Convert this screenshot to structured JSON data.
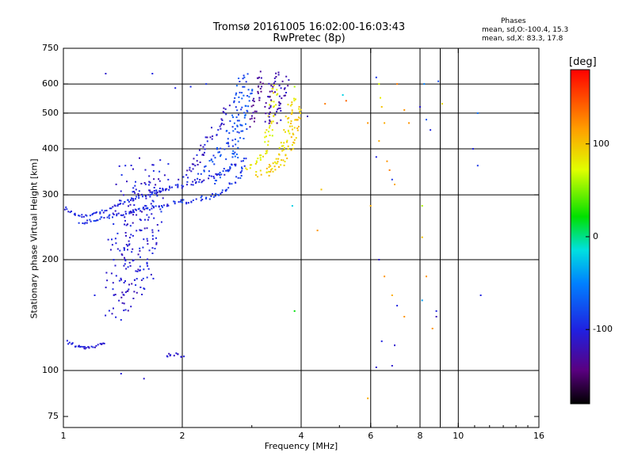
{
  "header": {
    "title_line1": "Tromsø 20161005 16:02:00-16:03:43",
    "title_line2": "RwPretec (8p)",
    "stats_title": "Phases",
    "stats_line1": "mean, sd,O:-100.4, 15.3",
    "stats_line2": "mean, sd,X:  83.3, 17.8"
  },
  "colorbar": {
    "title": "[deg]",
    "range": [
      -180,
      180
    ],
    "ticks": [
      {
        "value": 100,
        "label": "100"
      },
      {
        "value": 0,
        "label": "0"
      },
      {
        "value": -100,
        "label": "-100"
      }
    ]
  },
  "chart_data": {
    "type": "scatter",
    "xlabel": "Frequency [MHz]",
    "ylabel": "Stationary phase Virtual Height [km]",
    "xscale": "log",
    "yscale": "log",
    "xlim": [
      1,
      16
    ],
    "ylim": [
      70,
      750
    ],
    "xticks": [
      {
        "value": 1,
        "label": "1"
      },
      {
        "value": 2,
        "label": "2"
      },
      {
        "value": 4,
        "label": "4"
      },
      {
        "value": 6,
        "label": "6"
      },
      {
        "value": 8,
        "label": "8"
      },
      {
        "value": 10,
        "label": "10"
      },
      {
        "value": 16,
        "label": "16"
      }
    ],
    "yticks": [
      {
        "value": 75,
        "label": "75"
      },
      {
        "value": 100,
        "label": "100"
      },
      {
        "value": 200,
        "label": "200"
      },
      {
        "value": 300,
        "label": "300"
      },
      {
        "value": 400,
        "label": "400"
      },
      {
        "value": 500,
        "label": "500"
      },
      {
        "value": 600,
        "label": "600"
      },
      {
        "value": 750,
        "label": "750"
      }
    ],
    "grid": true,
    "xgrid": [
      2,
      4,
      6,
      8,
      9,
      10
    ],
    "ygrid": [
      100,
      200,
      300,
      400,
      500,
      600
    ],
    "traces": [
      {
        "name": "low-E",
        "phase": -105,
        "spread": 4,
        "points": [
          [
            1.02,
            120
          ],
          [
            1.05,
            118
          ],
          [
            1.08,
            116
          ],
          [
            1.1,
            116
          ],
          [
            1.13,
            115
          ],
          [
            1.16,
            115
          ],
          [
            1.2,
            116
          ],
          [
            1.24,
            118
          ],
          [
            1.27,
            120
          ]
        ]
      },
      {
        "name": "low-trace-a",
        "phase": -100,
        "spread": 4,
        "points": [
          [
            1.0,
            280
          ],
          [
            1.05,
            268
          ],
          [
            1.12,
            262
          ],
          [
            1.2,
            265
          ],
          [
            1.28,
            272
          ],
          [
            1.38,
            282
          ],
          [
            1.5,
            292
          ],
          [
            1.62,
            300
          ],
          [
            1.75,
            308
          ],
          [
            1.85,
            312
          ]
        ]
      },
      {
        "name": "low-trace-b",
        "phase": -95,
        "spread": 4,
        "points": [
          [
            1.1,
            250
          ],
          [
            1.2,
            256
          ],
          [
            1.32,
            262
          ],
          [
            1.45,
            268
          ],
          [
            1.6,
            275
          ],
          [
            1.75,
            280
          ],
          [
            1.88,
            282
          ]
        ]
      },
      {
        "name": "F-cluster-1",
        "phase": -105,
        "spread": 30,
        "points": [
          [
            1.36,
            140
          ],
          [
            1.37,
            170
          ],
          [
            1.38,
            200
          ],
          [
            1.4,
            240
          ],
          [
            1.42,
            280
          ],
          [
            1.45,
            310
          ],
          [
            1.48,
            330
          ],
          [
            1.5,
            350
          ]
        ]
      },
      {
        "name": "F-cluster-2",
        "phase": -110,
        "spread": 30,
        "points": [
          [
            1.48,
            150
          ],
          [
            1.5,
            180
          ],
          [
            1.52,
            220
          ],
          [
            1.55,
            260
          ],
          [
            1.58,
            290
          ],
          [
            1.6,
            310
          ],
          [
            1.63,
            330
          ],
          [
            1.65,
            360
          ]
        ]
      },
      {
        "name": "F-cluster-3",
        "phase": -100,
        "spread": 25,
        "points": [
          [
            1.6,
            170
          ],
          [
            1.62,
            200
          ],
          [
            1.65,
            230
          ],
          [
            1.68,
            260
          ],
          [
            1.7,
            290
          ],
          [
            1.72,
            320
          ],
          [
            1.75,
            340
          ],
          [
            1.8,
            350
          ]
        ]
      },
      {
        "name": "F-band-1",
        "phase": -100,
        "spread": 6,
        "points": [
          [
            1.7,
            305
          ],
          [
            1.85,
            312
          ],
          [
            2.0,
            318
          ],
          [
            2.15,
            324
          ],
          [
            2.3,
            330
          ],
          [
            2.45,
            338
          ],
          [
            2.6,
            350
          ],
          [
            2.75,
            370
          ]
        ]
      },
      {
        "name": "F-band-2",
        "phase": -90,
        "spread": 6,
        "points": [
          [
            1.9,
            285
          ],
          [
            2.05,
            288
          ],
          [
            2.2,
            292
          ],
          [
            2.35,
            296
          ],
          [
            2.5,
            304
          ],
          [
            2.65,
            318
          ],
          [
            2.8,
            340
          ],
          [
            2.9,
            380
          ]
        ]
      },
      {
        "name": "F-rise-1",
        "phase": -80,
        "spread": 12,
        "points": [
          [
            2.2,
            340
          ],
          [
            2.35,
            360
          ],
          [
            2.5,
            390
          ],
          [
            2.6,
            420
          ],
          [
            2.7,
            470
          ],
          [
            2.75,
            520
          ],
          [
            2.8,
            580
          ],
          [
            2.9,
            640
          ]
        ]
      },
      {
        "name": "F-rise-2",
        "phase": -75,
        "spread": 12,
        "points": [
          [
            2.4,
            330
          ],
          [
            2.55,
            350
          ],
          [
            2.7,
            380
          ],
          [
            2.8,
            420
          ],
          [
            2.85,
            470
          ],
          [
            2.9,
            530
          ],
          [
            2.95,
            600
          ]
        ]
      },
      {
        "name": "F-rise-3",
        "phase": -110,
        "spread": 10,
        "points": [
          [
            2.0,
            330
          ],
          [
            2.1,
            350
          ],
          [
            2.2,
            380
          ],
          [
            2.3,
            410
          ],
          [
            2.4,
            440
          ],
          [
            2.5,
            470
          ],
          [
            2.6,
            520
          ]
        ]
      },
      {
        "name": "X-trace-1",
        "phase": 80,
        "spread": 10,
        "points": [
          [
            2.95,
            350
          ],
          [
            3.05,
            362
          ],
          [
            3.15,
            380
          ],
          [
            3.25,
            400
          ],
          [
            3.3,
            430
          ],
          [
            3.35,
            470
          ],
          [
            3.4,
            520
          ],
          [
            3.45,
            600
          ]
        ]
      },
      {
        "name": "X-trace-2",
        "phase": 90,
        "spread": 10,
        "points": [
          [
            3.1,
            340
          ],
          [
            3.25,
            345
          ],
          [
            3.4,
            360
          ],
          [
            3.5,
            380
          ],
          [
            3.6,
            410
          ],
          [
            3.7,
            450
          ],
          [
            3.75,
            500
          ],
          [
            3.8,
            560
          ]
        ]
      },
      {
        "name": "X-trace-3",
        "phase": 95,
        "spread": 8,
        "points": [
          [
            3.3,
            350
          ],
          [
            3.45,
            355
          ],
          [
            3.6,
            370
          ],
          [
            3.75,
            400
          ],
          [
            3.85,
            440
          ],
          [
            3.9,
            480
          ],
          [
            3.95,
            530
          ]
        ]
      },
      {
        "name": "O-top-1",
        "phase": -130,
        "spread": 10,
        "points": [
          [
            3.0,
            470
          ],
          [
            3.05,
            520
          ],
          [
            3.1,
            570
          ],
          [
            3.15,
            620
          ],
          [
            3.2,
            650
          ]
        ]
      },
      {
        "name": "O-top-2",
        "phase": -125,
        "spread": 10,
        "points": [
          [
            3.25,
            470
          ],
          [
            3.3,
            520
          ],
          [
            3.35,
            570
          ],
          [
            3.4,
            620
          ],
          [
            3.5,
            650
          ]
        ]
      },
      {
        "name": "O-top-3",
        "phase": -120,
        "spread": 10,
        "points": [
          [
            3.5,
            480
          ],
          [
            3.55,
            530
          ],
          [
            3.6,
            580
          ],
          [
            3.65,
            630
          ]
        ]
      },
      {
        "name": "E-sporadic",
        "phase": -105,
        "spread": 4,
        "points": [
          [
            1.82,
            110
          ],
          [
            1.88,
            111
          ],
          [
            1.95,
            110
          ],
          [
            2.02,
            109
          ]
        ]
      }
    ],
    "scatter_points": [
      [
        1.28,
        640,
        -110
      ],
      [
        1.68,
        640,
        -100
      ],
      [
        1.2,
        160,
        -100
      ],
      [
        1.4,
        98,
        -105
      ],
      [
        1.6,
        95,
        -110
      ],
      [
        2.1,
        590,
        -95
      ],
      [
        1.92,
        585,
        -100
      ],
      [
        2.3,
        600,
        -90
      ],
      [
        3.85,
        590,
        60
      ],
      [
        4.15,
        490,
        -120
      ],
      [
        4.6,
        530,
        130
      ],
      [
        5.1,
        560,
        -20
      ],
      [
        5.2,
        540,
        140
      ],
      [
        5.9,
        470,
        120
      ],
      [
        6.2,
        625,
        -90
      ],
      [
        6.3,
        600,
        70
      ],
      [
        6.35,
        550,
        80
      ],
      [
        6.4,
        520,
        100
      ],
      [
        6.5,
        470,
        110
      ],
      [
        6.3,
        420,
        110
      ],
      [
        6.2,
        380,
        -100
      ],
      [
        6.6,
        370,
        120
      ],
      [
        6.7,
        350,
        130
      ],
      [
        6.8,
        330,
        -90
      ],
      [
        6.9,
        320,
        110
      ],
      [
        7.0,
        600,
        130
      ],
      [
        7.3,
        510,
        120
      ],
      [
        7.5,
        470,
        120
      ],
      [
        8.0,
        520,
        -110
      ],
      [
        8.2,
        600,
        -50
      ],
      [
        8.3,
        480,
        -70
      ],
      [
        8.5,
        450,
        -100
      ],
      [
        8.9,
        610,
        -80
      ],
      [
        9.1,
        530,
        90
      ],
      [
        11.2,
        500,
        -60
      ],
      [
        11.2,
        360,
        -90
      ],
      [
        10.9,
        400,
        -100
      ],
      [
        6.0,
        280,
        110
      ],
      [
        6.3,
        200,
        -110
      ],
      [
        6.5,
        180,
        120
      ],
      [
        6.8,
        160,
        110
      ],
      [
        7.0,
        150,
        -100
      ],
      [
        7.3,
        140,
        120
      ],
      [
        6.4,
        120,
        -100
      ],
      [
        6.9,
        117,
        -110
      ],
      [
        6.2,
        102,
        -110
      ],
      [
        6.8,
        103,
        -110
      ],
      [
        5.9,
        84,
        110
      ],
      [
        8.1,
        280,
        60
      ],
      [
        8.1,
        230,
        100
      ],
      [
        8.1,
        155,
        -40
      ],
      [
        8.3,
        180,
        120
      ],
      [
        8.8,
        145,
        -100
      ],
      [
        8.8,
        140,
        -120
      ],
      [
        8.6,
        130,
        120
      ],
      [
        11.4,
        160,
        -100
      ],
      [
        3.85,
        145,
        20
      ],
      [
        4.4,
        240,
        120
      ],
      [
        4.5,
        310,
        100
      ],
      [
        3.8,
        280,
        -20
      ]
    ]
  }
}
